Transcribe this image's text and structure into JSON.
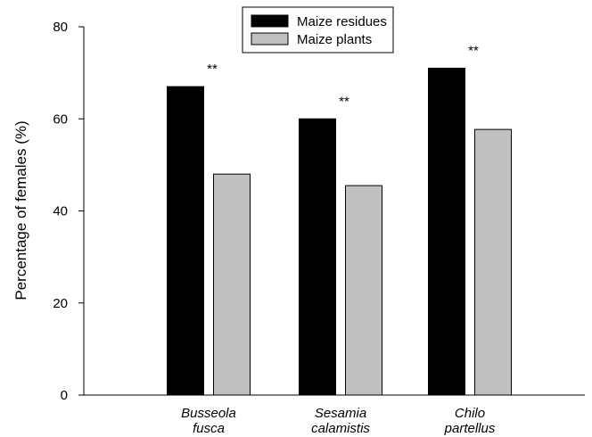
{
  "chart_data": {
    "type": "bar",
    "categories": [
      [
        "Busseola",
        "fusca"
      ],
      [
        "Sesamia",
        "calamistis"
      ],
      [
        "Chilo",
        "partellus"
      ]
    ],
    "series": [
      {
        "name": "Maize residues",
        "color": "#000000",
        "values": [
          67,
          60,
          71
        ]
      },
      {
        "name": "Maize plants",
        "color": "#c0c0c0",
        "values": [
          48,
          45.5,
          57.7
        ]
      }
    ],
    "significance": [
      "**",
      "**",
      "**"
    ],
    "ylabel": "Percentage of females (%)",
    "xlabel": "",
    "ylim": [
      0,
      80
    ],
    "yticks": [
      0,
      20,
      40,
      60,
      80
    ],
    "grid": false,
    "legend_position": "top-center"
  }
}
